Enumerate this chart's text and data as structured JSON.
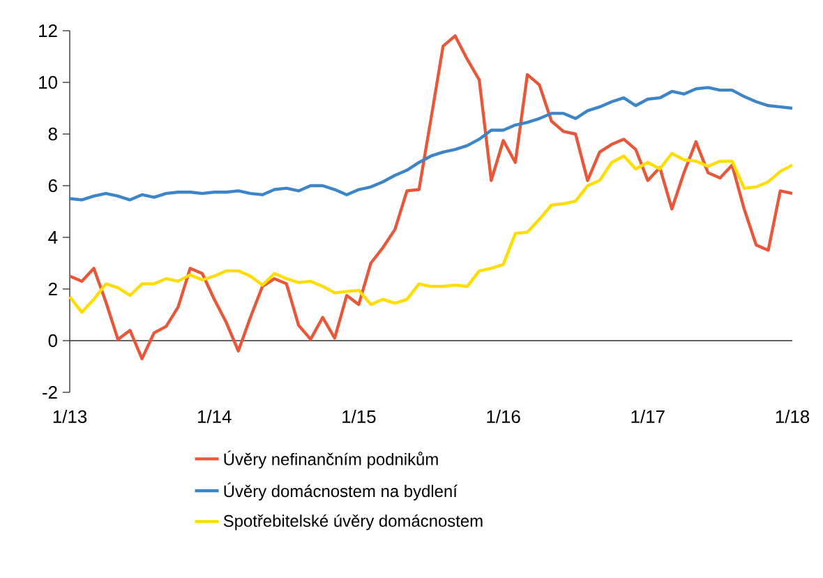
{
  "chart_data": {
    "type": "line",
    "x": [
      "2013-01",
      "2013-02",
      "2013-03",
      "2013-04",
      "2013-05",
      "2013-06",
      "2013-07",
      "2013-08",
      "2013-09",
      "2013-10",
      "2013-11",
      "2013-12",
      "2014-01",
      "2014-02",
      "2014-03",
      "2014-04",
      "2014-05",
      "2014-06",
      "2014-07",
      "2014-08",
      "2014-09",
      "2014-10",
      "2014-11",
      "2014-12",
      "2015-01",
      "2015-02",
      "2015-03",
      "2015-04",
      "2015-05",
      "2015-06",
      "2015-07",
      "2015-08",
      "2015-09",
      "2015-10",
      "2015-11",
      "2015-12",
      "2016-01",
      "2016-02",
      "2016-03",
      "2016-04",
      "2016-05",
      "2016-06",
      "2016-07",
      "2016-08",
      "2016-09",
      "2016-10",
      "2016-11",
      "2016-12",
      "2017-01",
      "2017-02",
      "2017-03",
      "2017-04",
      "2017-05",
      "2017-06",
      "2017-07",
      "2017-08",
      "2017-09",
      "2017-10",
      "2017-11",
      "2017-12",
      "2018-01"
    ],
    "series": [
      {
        "name": "Úvěry nefinančním podnikům",
        "color": "#e9573a",
        "values": [
          2.5,
          2.3,
          2.8,
          1.5,
          0.05,
          0.4,
          -0.7,
          0.3,
          0.55,
          1.3,
          2.8,
          2.6,
          1.6,
          0.7,
          -0.4,
          0.9,
          2.1,
          2.4,
          2.2,
          0.6,
          0.05,
          0.9,
          0.1,
          1.75,
          1.4,
          3.0,
          3.6,
          4.3,
          5.8,
          5.85,
          8.6,
          11.4,
          11.8,
          10.9,
          10.1,
          6.2,
          7.75,
          6.9,
          10.3,
          9.9,
          8.5,
          8.1,
          8.0,
          6.2,
          7.3,
          7.6,
          7.8,
          7.4,
          6.2,
          6.7,
          5.1,
          6.5,
          7.7,
          6.5,
          6.3,
          6.8,
          5.1,
          3.7,
          3.5,
          5.8,
          5.7
        ]
      },
      {
        "name": "Úvěry domácnostem na bydlení",
        "color": "#3d85c6",
        "values": [
          5.5,
          5.45,
          5.6,
          5.7,
          5.6,
          5.45,
          5.65,
          5.55,
          5.7,
          5.75,
          5.75,
          5.7,
          5.75,
          5.75,
          5.8,
          5.7,
          5.65,
          5.85,
          5.9,
          5.8,
          6.0,
          6.0,
          5.85,
          5.65,
          5.85,
          5.95,
          6.15,
          6.4,
          6.6,
          6.9,
          7.15,
          7.3,
          7.4,
          7.55,
          7.8,
          8.15,
          8.15,
          8.35,
          8.45,
          8.6,
          8.8,
          8.8,
          8.6,
          8.9,
          9.05,
          9.25,
          9.4,
          9.1,
          9.35,
          9.4,
          9.65,
          9.55,
          9.75,
          9.8,
          9.7,
          9.7,
          9.45,
          9.25,
          9.1,
          9.05,
          9.0
        ]
      },
      {
        "name": "Spotřebitelské úvěry domácnostem",
        "color": "#ffdd00",
        "values": [
          1.7,
          1.1,
          1.6,
          2.2,
          2.05,
          1.75,
          2.2,
          2.2,
          2.4,
          2.3,
          2.55,
          2.35,
          2.5,
          2.7,
          2.7,
          2.5,
          2.15,
          2.6,
          2.4,
          2.25,
          2.3,
          2.1,
          1.85,
          1.9,
          1.95,
          1.4,
          1.6,
          1.45,
          1.6,
          2.2,
          2.1,
          2.1,
          2.15,
          2.1,
          2.7,
          2.8,
          2.95,
          4.15,
          4.2,
          4.7,
          5.25,
          5.3,
          5.4,
          6.0,
          6.2,
          6.9,
          7.15,
          6.65,
          6.9,
          6.65,
          7.25,
          7.0,
          6.95,
          6.75,
          6.95,
          6.95,
          5.9,
          5.95,
          6.15,
          6.55,
          6.8
        ]
      }
    ],
    "xlim": [
      "2013-01",
      "2018-01"
    ],
    "xticks": [
      {
        "value": "2013-01",
        "label": "1/13"
      },
      {
        "value": "2014-01",
        "label": "1/14"
      },
      {
        "value": "2015-01",
        "label": "1/15"
      },
      {
        "value": "2016-01",
        "label": "1/16"
      },
      {
        "value": "2017-01",
        "label": "1/17"
      },
      {
        "value": "2018-01",
        "label": "1/18"
      }
    ],
    "ylim": [
      -2,
      12
    ],
    "yticks": [
      -2,
      0,
      2,
      4,
      6,
      8,
      10,
      12
    ],
    "legend": "bottom",
    "marker": "none",
    "line_style": "solid"
  }
}
